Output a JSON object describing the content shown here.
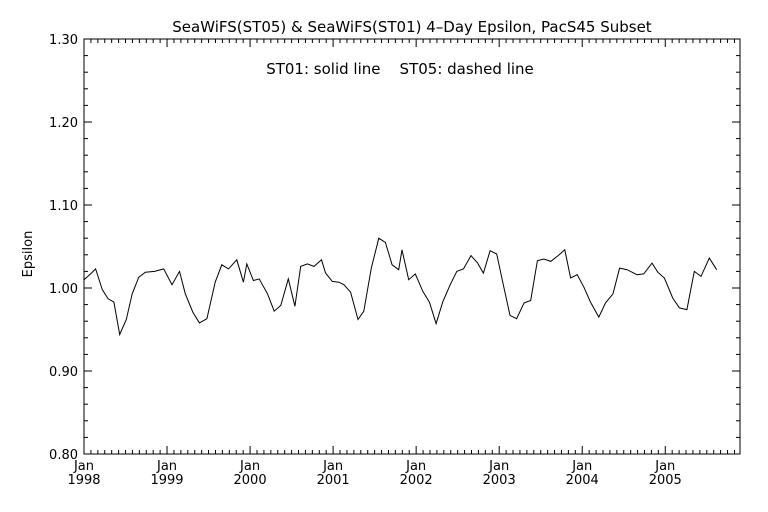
{
  "chart_data": {
    "type": "line",
    "title": "SeaWiFS(ST05) & SeaWiFS(ST01) 4–Day Epsilon, PacS45 Subset",
    "annotation": "ST01: solid line    ST05: dashed line",
    "xlabel": "",
    "ylabel": "Epsilon",
    "ylim": [
      0.8,
      1.3
    ],
    "yticks": [
      "0.80",
      "0.90",
      "1.00",
      "1.10",
      "1.20",
      "1.30"
    ],
    "xlim": [
      1998.0,
      2005.9
    ],
    "xticks": [
      {
        "month": "Jan",
        "year": "1998",
        "x": 1998
      },
      {
        "month": "Jan",
        "year": "1999",
        "x": 1999
      },
      {
        "month": "Jan",
        "year": "2000",
        "x": 2000
      },
      {
        "month": "Jan",
        "year": "2001",
        "x": 2001
      },
      {
        "month": "Jan",
        "year": "2002",
        "x": 2002
      },
      {
        "month": "Jan",
        "year": "2003",
        "x": 2003
      },
      {
        "month": "Jan",
        "year": "2004",
        "x": 2004
      },
      {
        "month": "Jan",
        "year": "2005",
        "x": 2005
      }
    ],
    "series": [
      {
        "line_style": "solid",
        "points": [
          [
            1998.0,
            1.01
          ],
          [
            1998.08,
            1.017
          ],
          [
            1998.14,
            1.023
          ],
          [
            1998.22,
            0.998
          ],
          [
            1998.29,
            0.987
          ],
          [
            1998.36,
            0.983
          ],
          [
            1998.43,
            0.944
          ],
          [
            1998.51,
            0.962
          ],
          [
            1998.58,
            0.993
          ],
          [
            1998.66,
            1.013
          ],
          [
            1998.74,
            1.019
          ],
          [
            1998.85,
            1.02
          ],
          [
            1998.96,
            1.023
          ],
          [
            1999.06,
            1.004
          ],
          [
            1999.15,
            1.02
          ],
          [
            1999.22,
            0.993
          ],
          [
            1999.31,
            0.971
          ],
          [
            1999.39,
            0.958
          ],
          [
            1999.48,
            0.963
          ],
          [
            1999.58,
            1.007
          ],
          [
            1999.66,
            1.028
          ],
          [
            1999.74,
            1.023
          ],
          [
            1999.84,
            1.034
          ],
          [
            1999.92,
            1.007
          ],
          [
            1999.96,
            1.029
          ],
          [
            2000.04,
            1.009
          ],
          [
            2000.11,
            1.011
          ],
          [
            2000.21,
            0.993
          ],
          [
            2000.29,
            0.972
          ],
          [
            2000.37,
            0.979
          ],
          [
            2000.46,
            1.011
          ],
          [
            2000.54,
            0.978
          ],
          [
            2000.61,
            1.026
          ],
          [
            2000.69,
            1.029
          ],
          [
            2000.77,
            1.026
          ],
          [
            2000.86,
            1.034
          ],
          [
            2000.91,
            1.018
          ],
          [
            2000.99,
            1.008
          ],
          [
            2001.07,
            1.007
          ],
          [
            2001.13,
            1.004
          ],
          [
            2001.21,
            0.995
          ],
          [
            2001.3,
            0.962
          ],
          [
            2001.37,
            0.972
          ],
          [
            2001.46,
            1.024
          ],
          [
            2001.55,
            1.06
          ],
          [
            2001.63,
            1.055
          ],
          [
            2001.71,
            1.028
          ],
          [
            2001.79,
            1.022
          ],
          [
            2001.83,
            1.046
          ],
          [
            2001.91,
            1.01
          ],
          [
            2001.99,
            1.017
          ],
          [
            2002.08,
            0.996
          ],
          [
            2002.16,
            0.983
          ],
          [
            2002.24,
            0.957
          ],
          [
            2002.32,
            0.983
          ],
          [
            2002.41,
            1.004
          ],
          [
            2002.49,
            1.02
          ],
          [
            2002.57,
            1.023
          ],
          [
            2002.66,
            1.039
          ],
          [
            2002.74,
            1.03
          ],
          [
            2002.81,
            1.018
          ],
          [
            2002.89,
            1.045
          ],
          [
            2002.97,
            1.041
          ],
          [
            2003.05,
            1.004
          ],
          [
            2003.13,
            0.967
          ],
          [
            2003.21,
            0.963
          ],
          [
            2003.3,
            0.982
          ],
          [
            2003.38,
            0.985
          ],
          [
            2003.46,
            1.033
          ],
          [
            2003.54,
            1.035
          ],
          [
            2003.62,
            1.032
          ],
          [
            2003.71,
            1.039
          ],
          [
            2003.79,
            1.046
          ],
          [
            2003.86,
            1.012
          ],
          [
            2003.94,
            1.016
          ],
          [
            2004.02,
            1.001
          ],
          [
            2004.1,
            0.983
          ],
          [
            2004.2,
            0.965
          ],
          [
            2004.28,
            0.982
          ],
          [
            2004.37,
            0.993
          ],
          [
            2004.45,
            1.024
          ],
          [
            2004.54,
            1.022
          ],
          [
            2004.66,
            1.016
          ],
          [
            2004.74,
            1.017
          ],
          [
            2004.84,
            1.03
          ],
          [
            2004.91,
            1.019
          ],
          [
            2004.99,
            1.012
          ],
          [
            2005.09,
            0.988
          ],
          [
            2005.17,
            0.976
          ],
          [
            2005.26,
            0.974
          ],
          [
            2005.35,
            1.02
          ],
          [
            2005.43,
            1.014
          ],
          [
            2005.53,
            1.036
          ],
          [
            2005.62,
            1.022
          ]
        ]
      }
    ]
  }
}
